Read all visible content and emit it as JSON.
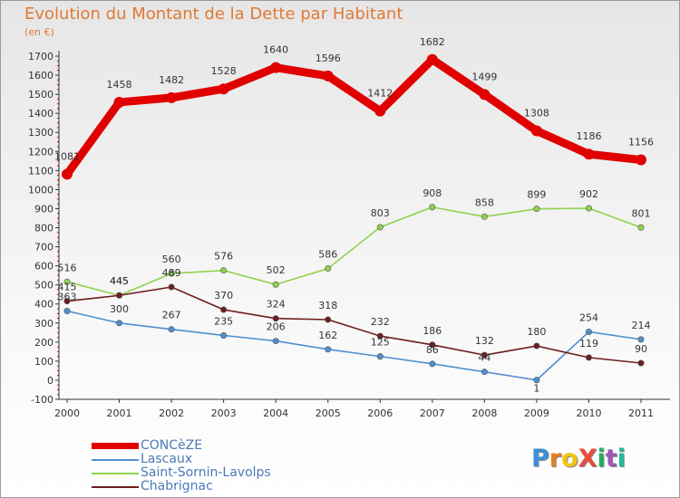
{
  "header": {
    "title": "Evolution du Montant de la Dette par Habitant",
    "subtitle": "(en €)"
  },
  "colors": {
    "title": "#e07a33",
    "axis": "#333333",
    "grid_tick": "#c00000"
  },
  "logo": {
    "text": "ProXiti",
    "letters": [
      "P",
      "r",
      "o",
      "X",
      "i",
      "t",
      "i"
    ],
    "colors": [
      "#3b8fd6",
      "#e67e22",
      "#f1c40f",
      "#e74c3c",
      "#27ae60",
      "#9b59b6",
      "#1abc9c"
    ]
  },
  "chart_data": {
    "type": "line",
    "title": "Evolution du Montant de la Dette par Habitant",
    "xlabel": "",
    "ylabel": "(en €)",
    "x": [
      "2000",
      "2001",
      "2002",
      "2003",
      "2004",
      "2005",
      "2006",
      "2007",
      "2008",
      "2009",
      "2010",
      "2011"
    ],
    "ylim": [
      -100,
      1700
    ],
    "yticks": [
      -100,
      0,
      100,
      200,
      300,
      400,
      500,
      600,
      700,
      800,
      900,
      1000,
      1100,
      1200,
      1300,
      1400,
      1500,
      1600,
      1700
    ],
    "legend_position": "bottom-left",
    "series": [
      {
        "name": "CONCèZE",
        "color": "#e00000",
        "values": [
          1081,
          1458,
          1482,
          1528,
          1640,
          1596,
          1412,
          1682,
          1499,
          1308,
          1186,
          1156
        ],
        "labels": [
          "1081",
          "1458",
          "1482",
          "1528",
          "1640",
          "1596",
          "1412",
          "1682",
          "1499",
          "1308",
          "1186",
          "1156"
        ]
      },
      {
        "name": "Lascaux",
        "color": "#4f8fd0",
        "values": [
          363,
          300,
          267,
          235,
          206,
          162,
          125,
          86,
          44,
          1,
          254,
          214
        ],
        "labels": [
          "363",
          "300",
          "267",
          "235",
          "206",
          "162",
          "125",
          "86",
          "44",
          "1",
          "254",
          "214"
        ]
      },
      {
        "name": "Saint-Sornin-Lavolps",
        "color": "#8fd24f",
        "values": [
          516,
          445,
          560,
          576,
          502,
          586,
          803,
          908,
          858,
          899,
          902,
          801
        ],
        "labels": [
          "516",
          "445",
          "560",
          "576",
          "502",
          "586",
          "803",
          "908",
          "858",
          "899",
          "902",
          "801"
        ]
      },
      {
        "name": "Chabrignac",
        "color": "#6e1e1e",
        "values": [
          415,
          445,
          489,
          370,
          324,
          318,
          232,
          186,
          132,
          180,
          119,
          90
        ],
        "labels": [
          "415",
          "445",
          "489",
          "370",
          "324",
          "318",
          "232",
          "186",
          "132",
          "180",
          "119",
          "90"
        ]
      }
    ]
  }
}
